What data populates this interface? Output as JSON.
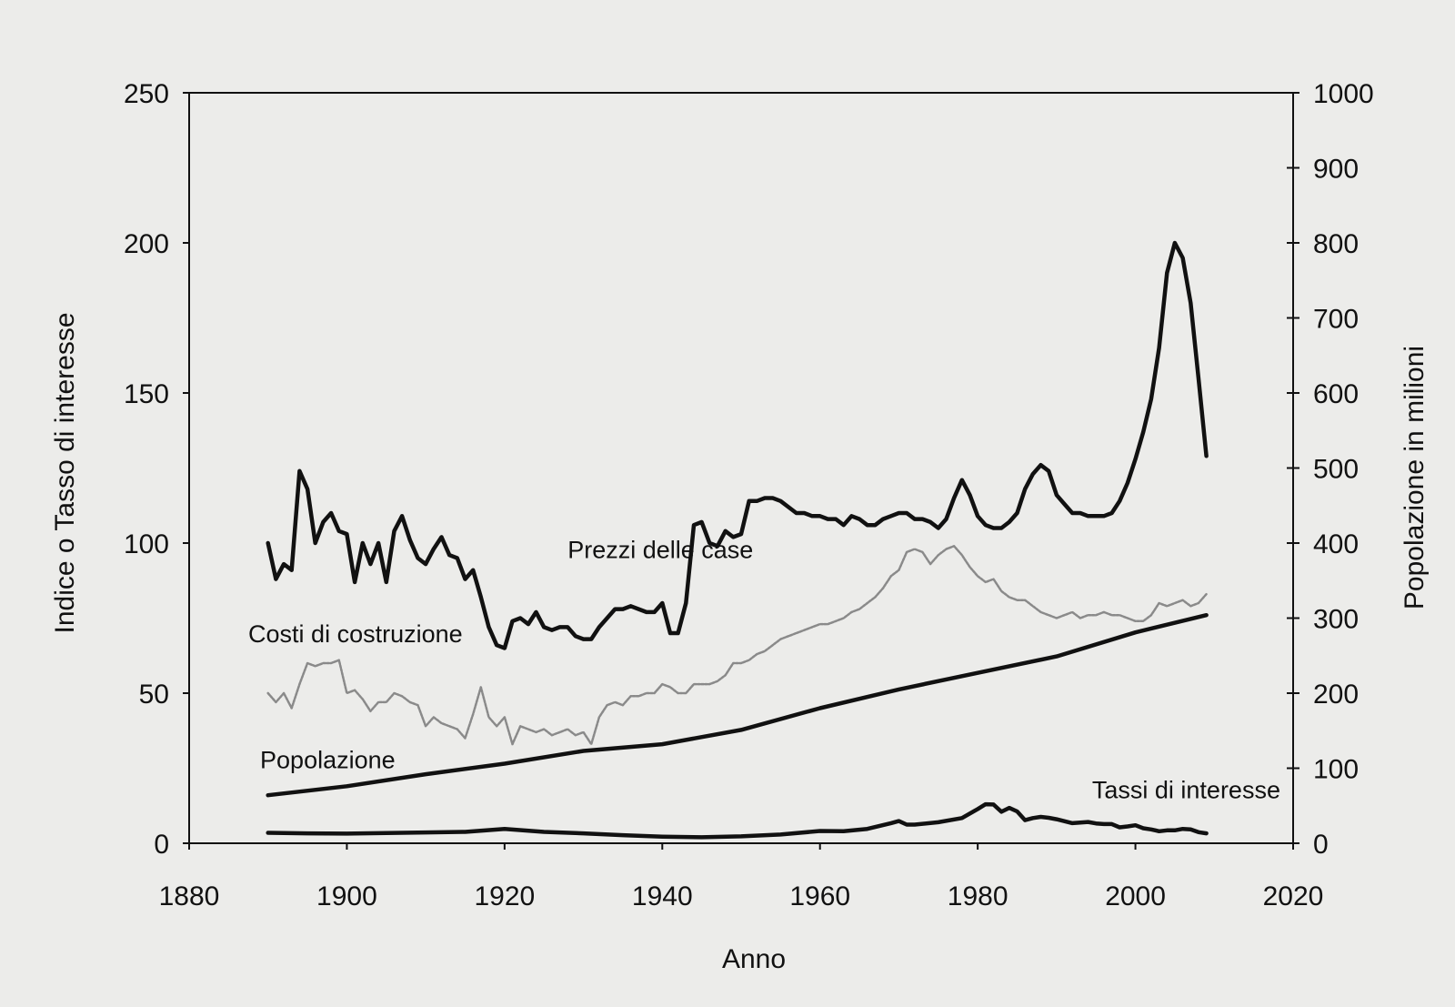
{
  "chart_data": {
    "type": "line",
    "title": "",
    "xlabel": "Anno",
    "ylabel_left": "Indice o Tasso di interesse",
    "ylabel_right": "Popolazione in milioni",
    "xlim": [
      1880,
      2020
    ],
    "ylim_left": [
      0,
      250
    ],
    "ylim_right": [
      0,
      1000
    ],
    "grid": false,
    "legend": "none (series labeled directly on chart)",
    "x_ticks": [
      "1880",
      "1900",
      "1920",
      "1940",
      "1960",
      "1980",
      "2000",
      "2020"
    ],
    "y_left_ticks": [
      "0",
      "50",
      "100",
      "150",
      "200",
      "250"
    ],
    "y_right_ticks": [
      "0",
      "100",
      "200",
      "300",
      "400",
      "500",
      "600",
      "700",
      "800",
      "900",
      "1000"
    ],
    "series": [
      {
        "name": "Prezzi delle case",
        "axis": "left",
        "style": "thick",
        "x": [
          1890,
          1891,
          1892,
          1893,
          1894,
          1895,
          1896,
          1897,
          1898,
          1899,
          1900,
          1901,
          1902,
          1903,
          1904,
          1905,
          1906,
          1907,
          1908,
          1909,
          1910,
          1911,
          1912,
          1913,
          1914,
          1915,
          1916,
          1917,
          1918,
          1919,
          1920,
          1921,
          1922,
          1923,
          1924,
          1925,
          1926,
          1927,
          1928,
          1929,
          1930,
          1931,
          1932,
          1933,
          1934,
          1935,
          1936,
          1937,
          1938,
          1939,
          1940,
          1941,
          1942,
          1943,
          1944,
          1945,
          1946,
          1947,
          1948,
          1949,
          1950,
          1951,
          1952,
          1953,
          1954,
          1955,
          1956,
          1957,
          1958,
          1959,
          1960,
          1961,
          1962,
          1963,
          1964,
          1965,
          1966,
          1967,
          1968,
          1969,
          1970,
          1971,
          1972,
          1973,
          1974,
          1975,
          1976,
          1977,
          1978,
          1979,
          1980,
          1981,
          1982,
          1983,
          1984,
          1985,
          1986,
          1987,
          1988,
          1989,
          1990,
          1991,
          1992,
          1993,
          1994,
          1995,
          1996,
          1997,
          1998,
          1999,
          2000,
          2001,
          2002,
          2003,
          2004,
          2005,
          2006,
          2007,
          2008,
          2009
        ],
        "values": [
          100,
          88,
          93,
          91,
          124,
          118,
          100,
          107,
          110,
          104,
          103,
          87,
          100,
          93,
          100,
          87,
          104,
          109,
          101,
          95,
          93,
          98,
          102,
          96,
          95,
          88,
          91,
          82,
          72,
          66,
          65,
          74,
          75,
          73,
          77,
          72,
          71,
          72,
          72,
          69,
          68,
          68,
          72,
          75,
          78,
          78,
          79,
          78,
          77,
          77,
          80,
          70,
          70,
          80,
          106,
          107,
          100,
          99,
          104,
          102,
          103,
          114,
          114,
          115,
          115,
          114,
          112,
          110,
          110,
          109,
          109,
          108,
          108,
          106,
          109,
          108,
          106,
          106,
          108,
          109,
          110,
          110,
          108,
          108,
          107,
          105,
          108,
          115,
          121,
          116,
          109,
          106,
          105,
          105,
          107,
          110,
          118,
          123,
          126,
          124,
          116,
          113,
          110,
          110,
          109,
          109,
          109,
          110,
          114,
          120,
          128,
          137,
          148,
          165,
          190,
          200,
          195,
          180,
          155,
          129
        ]
      },
      {
        "name": "Costi di costruzione",
        "axis": "left",
        "style": "thin-grey",
        "x": [
          1890,
          1891,
          1892,
          1893,
          1894,
          1895,
          1896,
          1897,
          1898,
          1899,
          1900,
          1901,
          1902,
          1903,
          1904,
          1905,
          1906,
          1907,
          1908,
          1909,
          1910,
          1911,
          1912,
          1913,
          1914,
          1915,
          1916,
          1917,
          1918,
          1919,
          1920,
          1921,
          1922,
          1923,
          1924,
          1925,
          1926,
          1927,
          1928,
          1929,
          1930,
          1931,
          1932,
          1933,
          1934,
          1935,
          1936,
          1937,
          1938,
          1939,
          1940,
          1941,
          1942,
          1943,
          1944,
          1945,
          1946,
          1947,
          1948,
          1949,
          1950,
          1951,
          1952,
          1953,
          1954,
          1955,
          1956,
          1957,
          1958,
          1959,
          1960,
          1961,
          1962,
          1963,
          1964,
          1965,
          1966,
          1967,
          1968,
          1969,
          1970,
          1971,
          1972,
          1973,
          1974,
          1975,
          1976,
          1977,
          1978,
          1979,
          1980,
          1981,
          1982,
          1983,
          1984,
          1985,
          1986,
          1987,
          1988,
          1989,
          1990,
          1991,
          1992,
          1993,
          1994,
          1995,
          1996,
          1997,
          1998,
          1999,
          2000,
          2001,
          2002,
          2003,
          2004,
          2005,
          2006,
          2007,
          2008,
          2009
        ],
        "values": [
          50,
          47,
          50,
          45,
          53,
          60,
          59,
          60,
          60,
          61,
          50,
          51,
          48,
          44,
          47,
          47,
          50,
          49,
          47,
          46,
          39,
          42,
          40,
          39,
          38,
          35,
          43,
          52,
          42,
          39,
          42,
          33,
          39,
          38,
          37,
          38,
          36,
          37,
          38,
          36,
          37,
          33,
          42,
          46,
          47,
          46,
          49,
          49,
          50,
          50,
          53,
          52,
          50,
          50,
          53,
          53,
          53,
          54,
          56,
          60,
          60,
          61,
          63,
          64,
          66,
          68,
          69,
          70,
          71,
          72,
          73,
          73,
          74,
          75,
          77,
          78,
          80,
          82,
          85,
          89,
          91,
          97,
          98,
          97,
          93,
          96,
          98,
          99,
          96,
          92,
          89,
          87,
          88,
          84,
          82,
          81,
          81,
          79,
          77,
          76,
          75,
          76,
          77,
          75,
          76,
          76,
          77,
          76,
          76,
          75,
          74,
          74,
          76,
          80,
          79,
          80,
          81,
          79,
          80,
          83
        ]
      },
      {
        "name": "Popolazione",
        "axis": "right",
        "style": "thick",
        "x": [
          1890,
          1900,
          1910,
          1920,
          1930,
          1940,
          1950,
          1960,
          1970,
          1980,
          1990,
          2000,
          2009
        ],
        "values": [
          64,
          76,
          92,
          106,
          123,
          132,
          151,
          180,
          205,
          227,
          249,
          281,
          304
        ]
      },
      {
        "name": "Tassi di interesse",
        "axis": "left",
        "style": "thick",
        "x": [
          1890,
          1895,
          1900,
          1905,
          1910,
          1915,
          1920,
          1925,
          1930,
          1935,
          1940,
          1945,
          1950,
          1955,
          1960,
          1963,
          1966,
          1969,
          1970,
          1971,
          1972,
          1975,
          1978,
          1980,
          1981,
          1982,
          1983,
          1984,
          1985,
          1986,
          1987,
          1988,
          1989,
          1990,
          1992,
          1994,
          1995,
          1996,
          1997,
          1998,
          1999,
          2000,
          2001,
          2002,
          2003,
          2004,
          2005,
          2006,
          2007,
          2008,
          2009
        ],
        "values": [
          3.5,
          3.3,
          3.2,
          3.4,
          3.6,
          3.8,
          4.8,
          3.8,
          3.3,
          2.7,
          2.2,
          2.0,
          2.3,
          2.9,
          4.1,
          4.0,
          4.8,
          6.7,
          7.4,
          6.2,
          6.2,
          7.0,
          8.4,
          11.4,
          13.0,
          12.9,
          10.5,
          11.8,
          10.6,
          7.7,
          8.4,
          8.8,
          8.5,
          8.0,
          6.7,
          7.1,
          6.6,
          6.4,
          6.4,
          5.3,
          5.6,
          6.0,
          5.0,
          4.6,
          4.0,
          4.3,
          4.3,
          4.8,
          4.6,
          3.7,
          3.3
        ]
      }
    ],
    "annotations": [
      {
        "text": "Prezzi delle case",
        "x": 1928,
        "y": 95
      },
      {
        "text": "Costi di costruzione",
        "x": 1887.5,
        "y": 67
      },
      {
        "text": "Popolazione",
        "x": 1889,
        "y": 25
      },
      {
        "text": "Tassi di interesse",
        "x": 1994.5,
        "y": 15
      }
    ]
  }
}
